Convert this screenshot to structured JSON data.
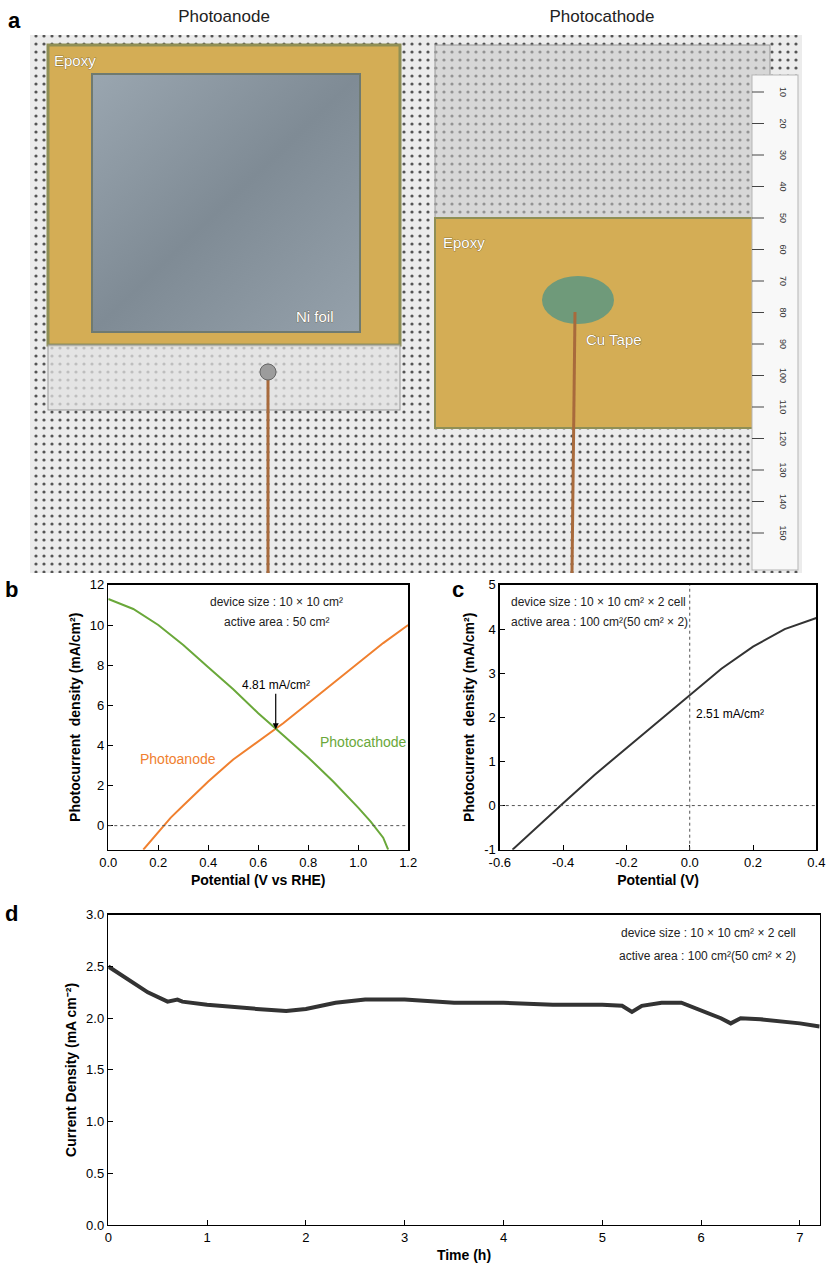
{
  "photo": {
    "panel": "a",
    "titles": [
      "Photoanode",
      "Photocathode"
    ],
    "photoanode_labels": [
      "Epoxy",
      "Ni foil"
    ],
    "photocathode_labels": [
      "Epoxy",
      "Cu Tape"
    ],
    "ruler_labels": [
      10,
      20,
      30,
      40,
      50,
      60,
      70,
      80,
      90,
      100,
      110,
      120,
      130,
      140,
      150
    ]
  },
  "chart_data": [
    {
      "panel": "b",
      "type": "line",
      "x_label": "Potential (V vs RHE)",
      "y_label": "Photocurrent  density (mA/cm²)",
      "notes": [
        "device size : 10 × 10 cm²",
        "active area : 50 cm²"
      ],
      "annotations": [
        {
          "text": "4.81 mA/cm²",
          "x": 0.67,
          "y": 4.81
        }
      ],
      "series": [
        {
          "name": "Photoanode",
          "color": "#f0802f",
          "x": [
            0.14,
            0.2,
            0.25,
            0.3,
            0.4,
            0.5,
            0.6,
            0.67,
            0.7,
            0.8,
            0.9,
            1.0,
            1.1,
            1.2
          ],
          "values": [
            -1.2,
            -0.3,
            0.4,
            1.0,
            2.2,
            3.3,
            4.2,
            4.81,
            5.1,
            6.1,
            7.1,
            8.1,
            9.1,
            10.0
          ]
        },
        {
          "name": "Photocathode",
          "color": "#6aa83a",
          "x": [
            0,
            0.1,
            0.2,
            0.3,
            0.4,
            0.5,
            0.6,
            0.67,
            0.7,
            0.8,
            0.9,
            1.0,
            1.05,
            1.1,
            1.12
          ],
          "values": [
            11.3,
            10.8,
            10.0,
            9.0,
            7.9,
            6.8,
            5.6,
            4.81,
            4.5,
            3.4,
            2.2,
            0.9,
            0.2,
            -0.6,
            -1.2
          ]
        }
      ],
      "xlim": [
        0,
        1.2
      ],
      "xticks": [
        {
          "value": 0,
          "label": "0.0"
        },
        0.2,
        0.4,
        0.6,
        0.8,
        {
          "value": 1,
          "label": "1.0"
        },
        1.2
      ],
      "ylim": [
        -1.2,
        12
      ],
      "yticks": [
        0,
        2,
        4,
        6,
        8,
        10,
        12
      ],
      "hlines": [
        0
      ],
      "grid": false
    },
    {
      "panel": "c",
      "type": "line",
      "x_label": "Potential (V)",
      "y_label": "Photocurrent  density (mA/cm²)",
      "notes": [
        "device size : 10 × 10 cm² × 2 cell",
        "active area : 100 cm²(50 cm² × 2)"
      ],
      "annotations": [
        {
          "text": "2.51 mA/cm²",
          "x": 0,
          "y": 2.51
        }
      ],
      "color": "#333333",
      "x": [
        -0.56,
        -0.5,
        -0.4,
        -0.3,
        -0.2,
        -0.1,
        0,
        0.1,
        0.2,
        0.3,
        0.4
      ],
      "values": [
        -1.0,
        -0.6,
        0.05,
        0.7,
        1.3,
        1.9,
        2.51,
        3.1,
        3.6,
        4.0,
        4.25
      ],
      "xlim": [
        -0.6,
        0.4
      ],
      "xticks": [
        -0.6,
        -0.4,
        -0.2,
        {
          "value": 0,
          "label": "0.0"
        },
        0.2,
        0.4
      ],
      "ylim": [
        -1,
        5
      ],
      "yticks": [
        -1,
        0,
        1,
        2,
        3,
        4,
        5
      ],
      "hlines": [
        0
      ],
      "vlines": [
        0
      ],
      "grid": false
    },
    {
      "panel": "d",
      "type": "line",
      "x_label": "Time (h)",
      "y_label": "Current Density (mA cm⁻²)",
      "notes": [
        "device size : 10 × 10 cm² × 2 cell",
        "active area : 100 cm²(50 cm² × 2)"
      ],
      "color": "#333333",
      "x": [
        0,
        0.2,
        0.4,
        0.6,
        0.7,
        0.75,
        1.0,
        1.5,
        1.8,
        2.0,
        2.3,
        2.6,
        3.0,
        3.5,
        4.0,
        4.5,
        5.0,
        5.2,
        5.3,
        5.4,
        5.6,
        5.8,
        6.0,
        6.2,
        6.3,
        6.4,
        6.6,
        7.0,
        7.2
      ],
      "values": [
        2.5,
        2.38,
        2.25,
        2.16,
        2.18,
        2.16,
        2.13,
        2.09,
        2.07,
        2.09,
        2.15,
        2.18,
        2.18,
        2.15,
        2.15,
        2.13,
        2.13,
        2.12,
        2.06,
        2.12,
        2.15,
        2.15,
        2.08,
        2.0,
        1.95,
        2.0,
        1.99,
        1.95,
        1.92
      ],
      "xlim": [
        0,
        7.2
      ],
      "xticks": [
        0,
        1,
        2,
        3,
        4,
        5,
        6,
        7
      ],
      "ylim": [
        0,
        3
      ],
      "yticks": [
        {
          "value": 0,
          "label": "0.0"
        },
        0.5,
        {
          "value": 1,
          "label": "1.0"
        },
        1.5,
        {
          "value": 2,
          "label": "2.0"
        },
        2.5,
        {
          "value": 3,
          "label": "3.0"
        }
      ],
      "grid": false
    }
  ]
}
